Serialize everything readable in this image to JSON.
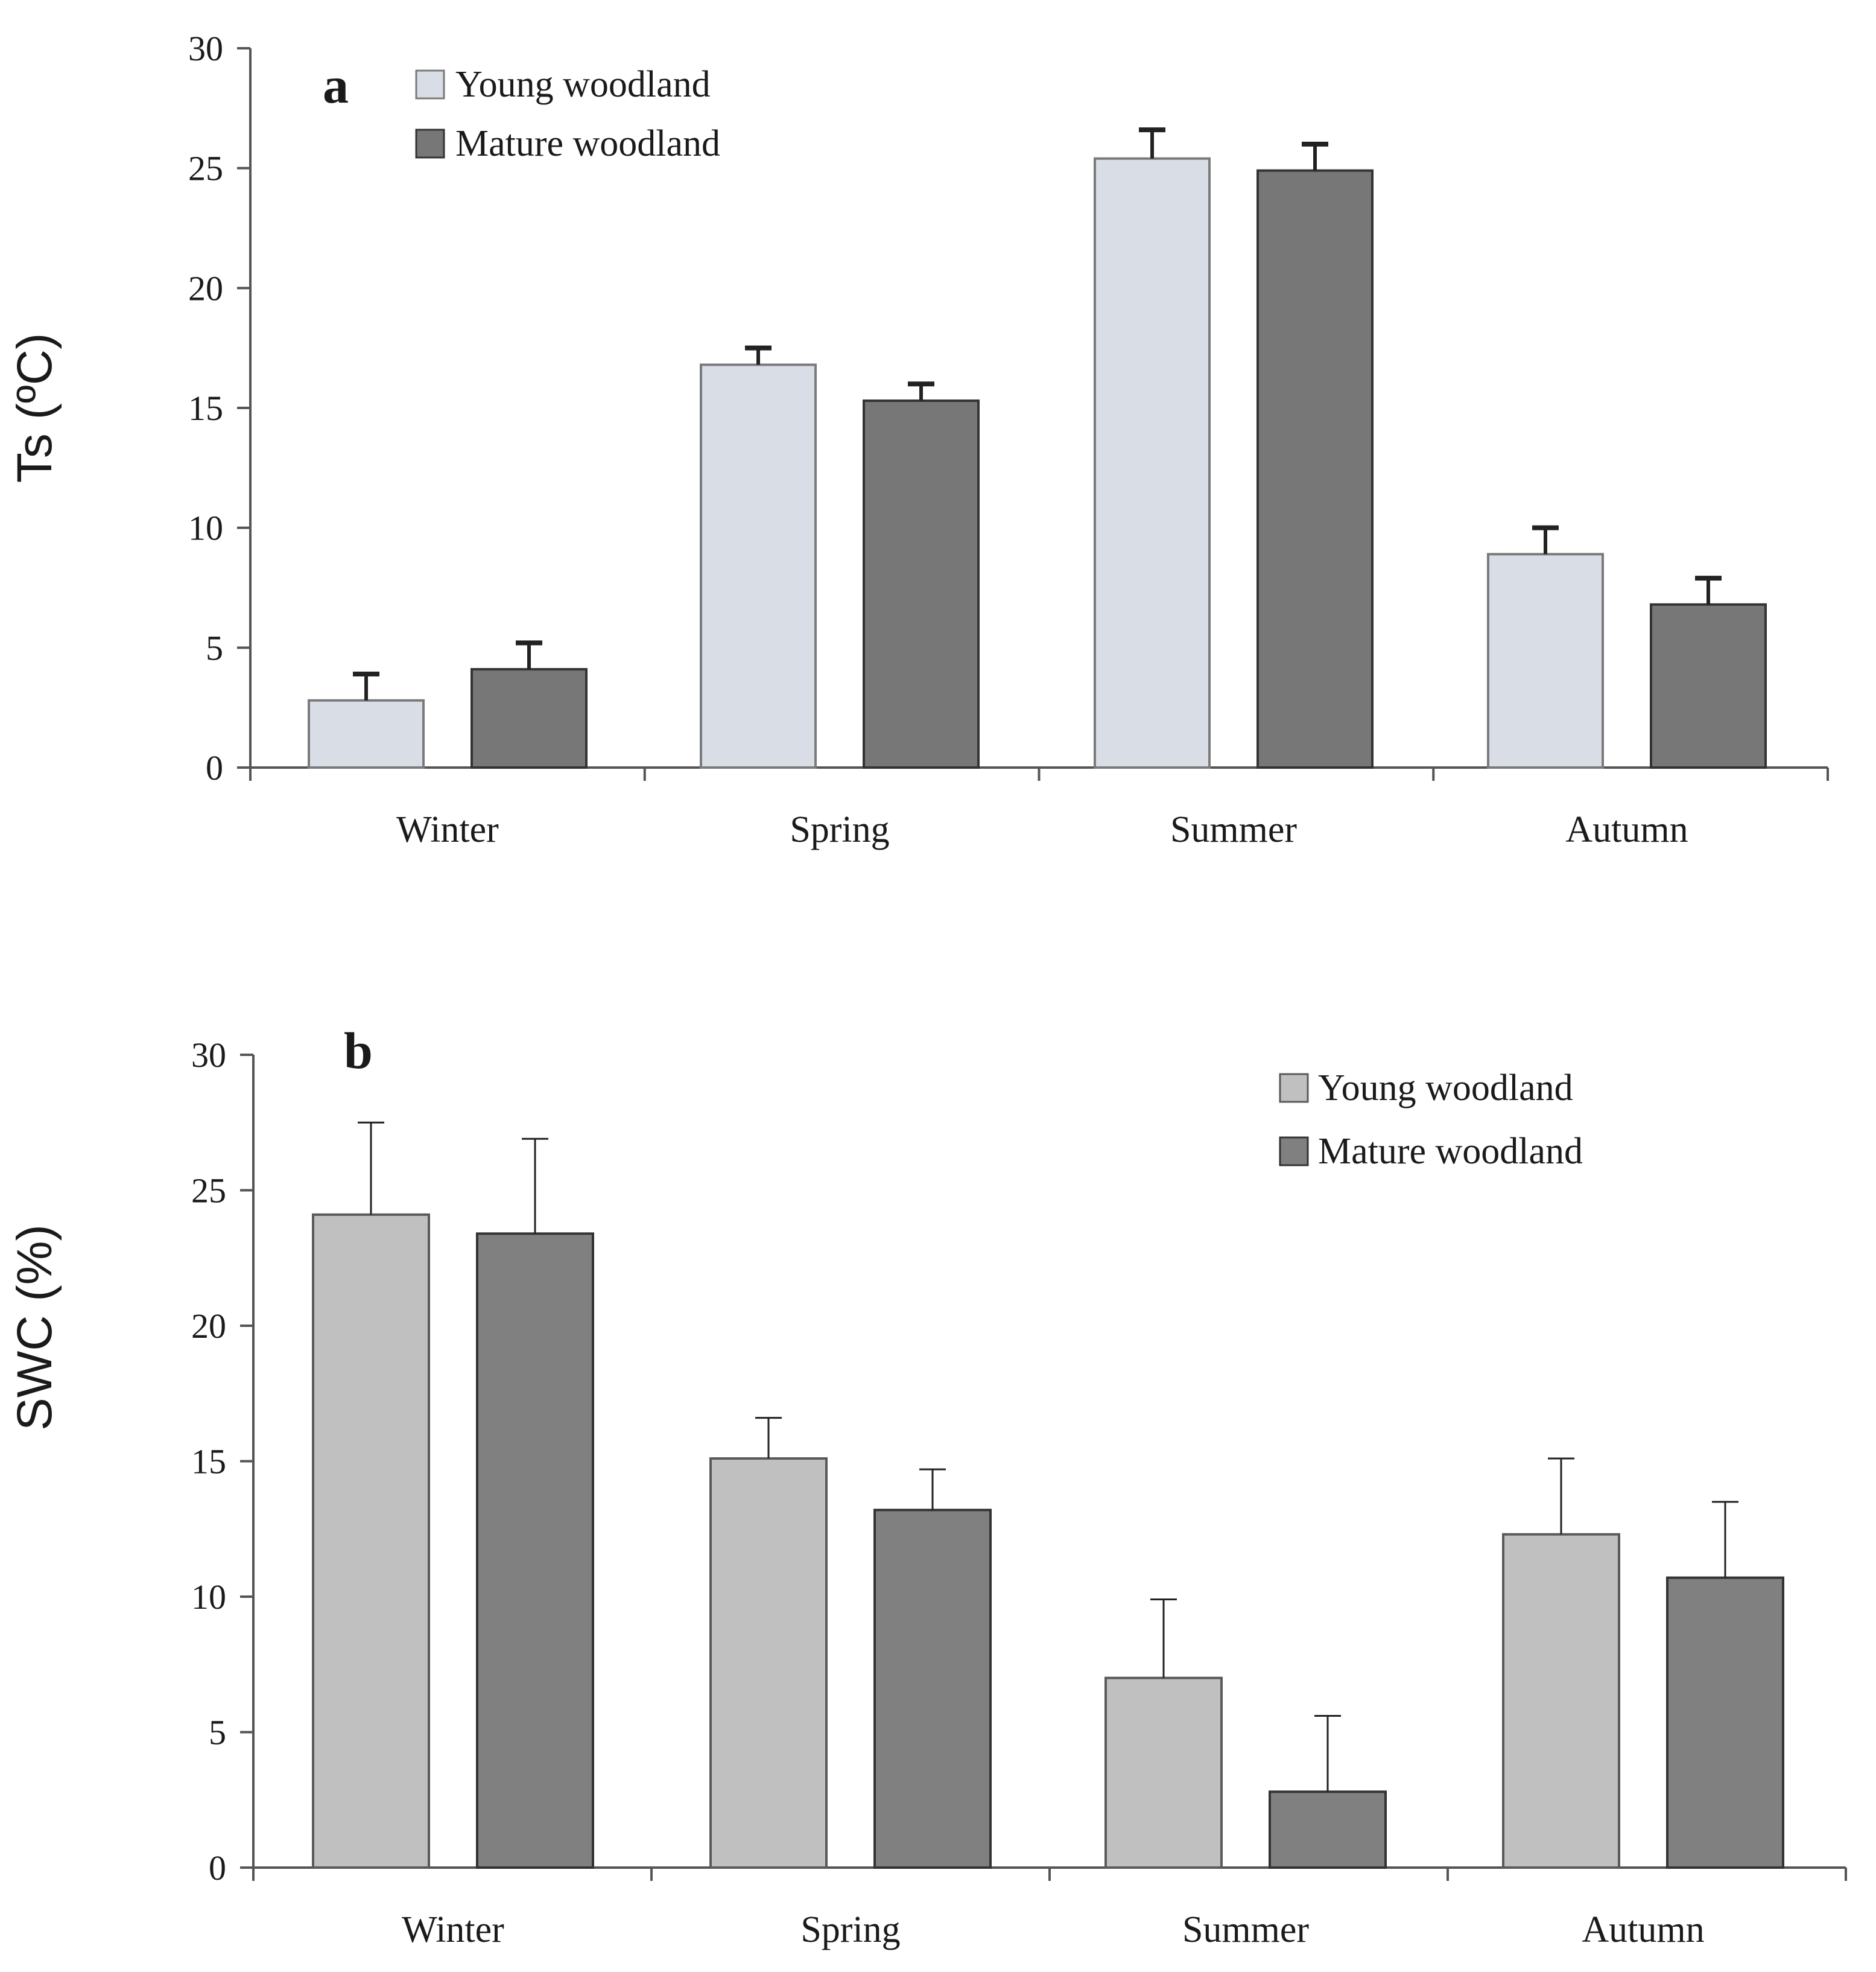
{
  "chart_data": [
    {
      "type": "bar",
      "panel_letter": "a",
      "ylabel": "Ts (ºC)",
      "xlabel": "",
      "categories": [
        "Winter",
        "Spring",
        "Summer",
        "Autumn"
      ],
      "ylim": [
        0,
        30
      ],
      "yticks": [
        0,
        5,
        10,
        15,
        20,
        25,
        30
      ],
      "legend_position": "top-left",
      "series": [
        {
          "name": "Young woodland",
          "values": [
            2.8,
            16.8,
            25.4,
            8.9
          ],
          "errors": [
            1.1,
            0.7,
            1.2,
            1.1
          ],
          "color": "#d9dee6",
          "edge": "#7a7a7a"
        },
        {
          "name": "Mature woodland",
          "values": [
            4.1,
            15.3,
            24.9,
            6.8
          ],
          "errors": [
            1.1,
            0.7,
            1.1,
            1.1
          ],
          "color": "#777777",
          "edge": "#333333"
        }
      ]
    },
    {
      "type": "bar",
      "panel_letter": "b",
      "ylabel": "SWC (%)",
      "xlabel": "",
      "categories": [
        "Winter",
        "Spring",
        "Summer",
        "Autumn"
      ],
      "ylim": [
        0,
        30
      ],
      "yticks": [
        0,
        5,
        10,
        15,
        20,
        25,
        30
      ],
      "legend_position": "top-right",
      "series": [
        {
          "name": "Young woodland",
          "values": [
            24.1,
            15.1,
            7.0,
            12.3
          ],
          "errors": [
            3.4,
            1.5,
            2.9,
            2.8
          ],
          "color": "#c0c0c0",
          "edge": "#5a5a5a"
        },
        {
          "name": "Mature woodland",
          "values": [
            23.4,
            13.2,
            2.8,
            10.7
          ],
          "errors": [
            3.5,
            1.5,
            2.8,
            2.8
          ],
          "color": "#808080",
          "edge": "#333333"
        }
      ]
    }
  ]
}
